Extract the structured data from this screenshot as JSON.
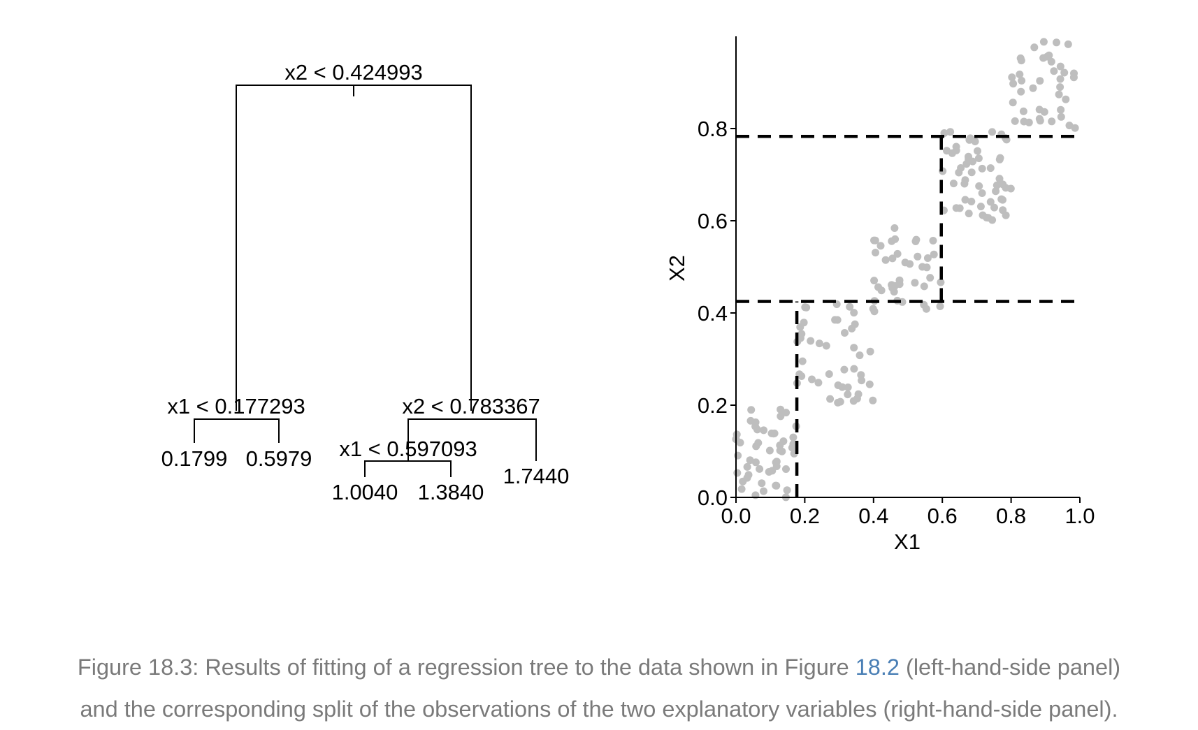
{
  "tree": {
    "root": "x2 < 0.424993",
    "left_split": "x1 < 0.177293",
    "right_split": "x2 < 0.783367",
    "inner_split": "x1 < 0.597093",
    "leaves": [
      "0.1799",
      "0.5979",
      "1.0040",
      "1.3840",
      "1.7440"
    ]
  },
  "chart_data": {
    "type": "scatter",
    "xlabel": "X1",
    "ylabel": "X2",
    "xlim": [
      0,
      1
    ],
    "ylim": [
      0,
      1
    ],
    "x_ticks": [
      "0.0",
      "0.2",
      "0.4",
      "0.6",
      "0.8",
      "1.0"
    ],
    "y_ticks": [
      "0.0",
      "0.2",
      "0.4",
      "0.6",
      "0.8"
    ],
    "point_color": "#bebebe",
    "split_line_color": "#000000",
    "split_lines": [
      {
        "orientation": "vertical",
        "x": 0.177,
        "y_from": 0,
        "y_to": 0.425
      },
      {
        "orientation": "horizontal",
        "y": 0.425,
        "x_from": 0,
        "x_to": 1
      },
      {
        "orientation": "vertical",
        "x": 0.597,
        "y_from": 0.425,
        "y_to": 0.783
      },
      {
        "orientation": "horizontal",
        "y": 0.783,
        "x_from": 0,
        "x_to": 1
      }
    ],
    "clusters": [
      {
        "x_range": [
          0.0,
          0.177
        ],
        "y_range": [
          0.0,
          0.2
        ],
        "n": 50
      },
      {
        "x_range": [
          0.177,
          0.4
        ],
        "y_range": [
          0.2,
          0.42
        ],
        "n": 45
      },
      {
        "x_range": [
          0.4,
          0.597
        ],
        "y_range": [
          0.4,
          0.6
        ],
        "n": 40
      },
      {
        "x_range": [
          0.597,
          0.8
        ],
        "y_range": [
          0.6,
          0.8
        ],
        "n": 55
      },
      {
        "x_range": [
          0.8,
          1.0
        ],
        "y_range": [
          0.8,
          1.0
        ],
        "n": 40
      }
    ]
  },
  "caption": {
    "prefix": "Figure 18.3: Results of fitting of a regression tree to the data shown in Figure ",
    "link": "18.2",
    "middle": " (left-hand-side panel)",
    "line2": "and the corresponding split of the observations of the two explanatory variables (right-hand-side panel)."
  }
}
